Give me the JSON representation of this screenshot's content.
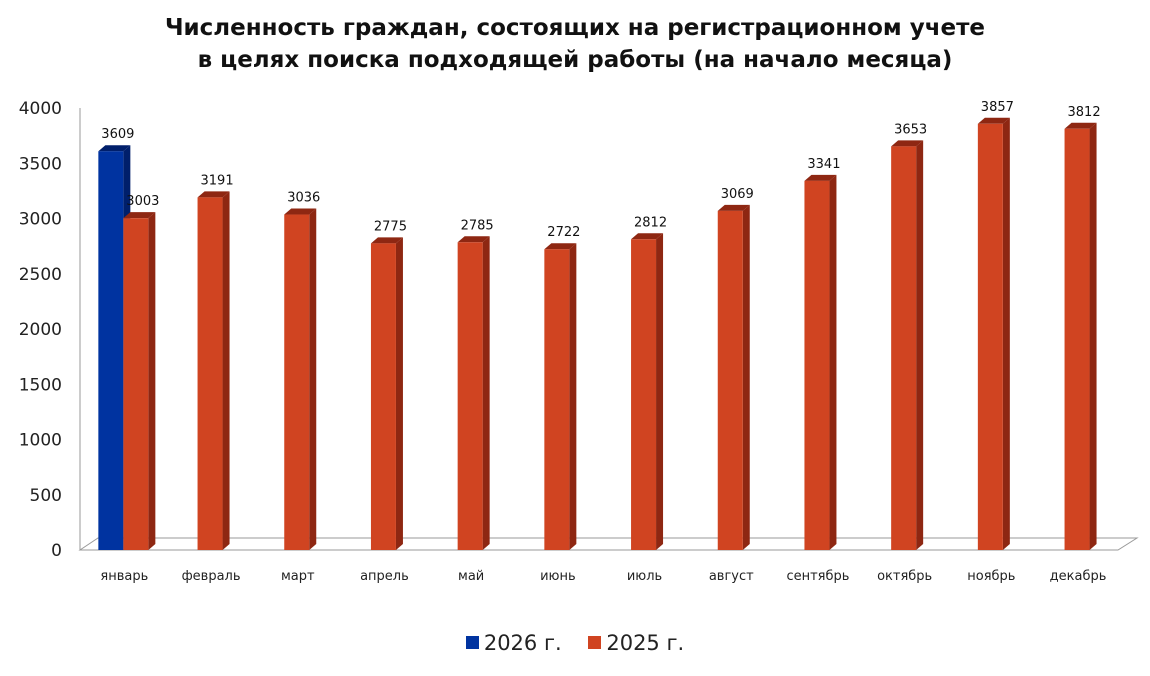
{
  "chart_data": {
    "type": "bar",
    "title_lines": [
      "Численность граждан, состоящих на регистрационном учете",
      "в целях поиска подходящей работы (на начало месяца)"
    ],
    "categories": [
      "январь",
      "февраль",
      "март",
      "апрель",
      "май",
      "июнь",
      "июль",
      "август",
      "сентябрь",
      "октябрь",
      "ноябрь",
      "декабрь"
    ],
    "series": [
      {
        "name": "2026 г.",
        "color": "#0033A0",
        "side_color": "#001F6B",
        "values": [
          3609,
          null,
          null,
          null,
          null,
          null,
          null,
          null,
          null,
          null,
          null,
          null
        ],
        "labels": [
          "3609",
          "",
          "",
          "",
          "",
          "",
          "",
          "",
          "",
          "",
          "",
          ""
        ]
      },
      {
        "name": "2025 г.",
        "color": "#D04421",
        "side_color": "#8E2712",
        "values": [
          3003,
          3191,
          3036,
          2775,
          2785,
          2722,
          2812,
          3069,
          3341,
          3653,
          3857,
          3812
        ],
        "labels": [
          "3003",
          "3191",
          "3036",
          "2775",
          "2785",
          "2722",
          "2812",
          "3069",
          "3341",
          "3653",
          "3857",
          "3812"
        ]
      }
    ],
    "yticks": [
      "0",
      "500",
      "1000",
      "1500",
      "2000",
      "2500",
      "3000",
      "3500",
      "4000"
    ],
    "ylim": [
      0,
      4000
    ],
    "legend": "bottom",
    "grid": false
  }
}
